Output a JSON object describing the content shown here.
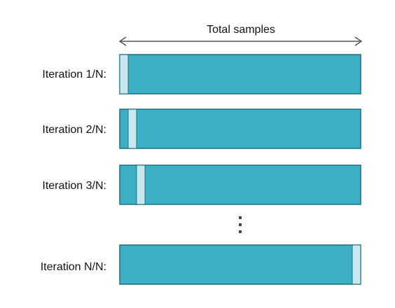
{
  "header": {
    "label": "Total samples"
  },
  "rows": [
    {
      "label": "Iteration 1/N:",
      "slice_index": 1
    },
    {
      "label": "Iteration 2/N:",
      "slice_index": 2
    },
    {
      "label": "Iteration 3/N:",
      "slice_index": 3
    },
    {
      "label": "Iteration N/N:",
      "slice_index": "N"
    }
  ],
  "colors": {
    "bar_fill": "#3bb0c4",
    "bar_border": "#1f6f80",
    "highlight_fill": "#c9e7ee",
    "arrow": "#555555",
    "dots": "#444444"
  }
}
